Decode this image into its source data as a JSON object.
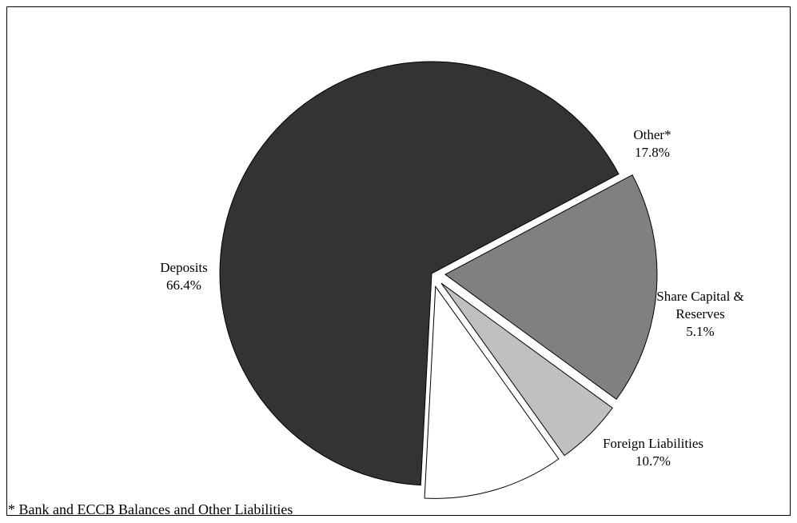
{
  "chart_data": {
    "type": "pie",
    "start_angle_deg": -28,
    "direction": "clockwise",
    "slices": [
      {
        "label_lines": [
          "Other*"
        ],
        "percent_label": "17.8%",
        "value": 17.8,
        "color": "#808080"
      },
      {
        "label_lines": [
          "Share Capital &",
          "Reserves"
        ],
        "percent_label": "5.1%",
        "value": 5.1,
        "color": "#c0c0c0"
      },
      {
        "label_lines": [
          "Foreign Liabilities"
        ],
        "percent_label": "10.7%",
        "value": 10.7,
        "color": "#ffffff"
      },
      {
        "label_lines": [
          "Deposits"
        ],
        "percent_label": "66.4%",
        "value": 66.4,
        "color": "#333333"
      }
    ]
  },
  "footnote": "* Bank and ECCB Balances and Other Liabilities"
}
